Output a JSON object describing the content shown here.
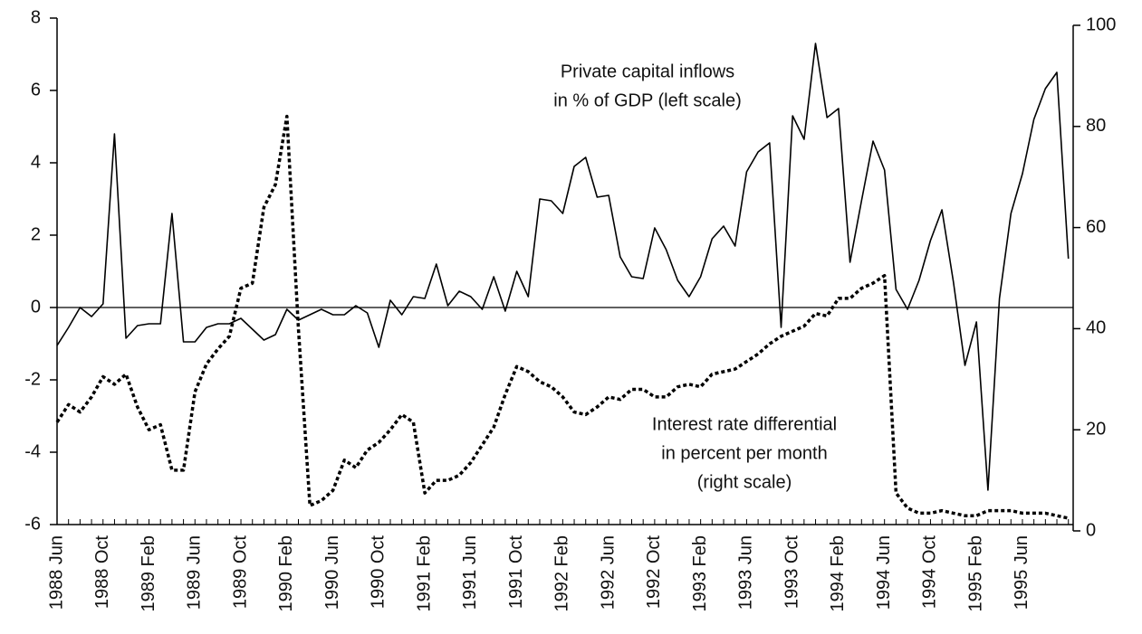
{
  "chart_data": {
    "type": "line",
    "annotations": [
      {
        "lines": [
          "Private capital inflows",
          "in % of GDP (left scale)"
        ]
      },
      {
        "lines": [
          "Interest rate differential",
          "in percent per month",
          "(right scale)"
        ]
      }
    ],
    "categories": [
      "1988 Jun",
      null,
      null,
      null,
      "1988 Oct",
      null,
      null,
      null,
      "1989 Feb",
      null,
      null,
      null,
      "1989 Jun",
      null,
      null,
      null,
      "1989 Oct",
      null,
      null,
      null,
      "1990 Feb",
      null,
      null,
      null,
      "1990 Jun",
      null,
      null,
      null,
      "1990 Oct",
      null,
      null,
      null,
      "1991 Feb",
      null,
      null,
      null,
      "1991 Jun",
      null,
      null,
      null,
      "1991 Oct",
      null,
      null,
      null,
      "1992 Feb",
      null,
      null,
      null,
      "1992 Jun",
      null,
      null,
      null,
      "1992 Oct",
      null,
      null,
      null,
      "1993 Feb",
      null,
      null,
      null,
      "1993 Jun",
      null,
      null,
      null,
      "1993 Oct",
      null,
      null,
      null,
      "1994 Feb",
      null,
      null,
      null,
      "1994 Jun",
      null,
      null,
      null,
      "1994 Oct",
      null,
      null,
      null,
      "1995 Feb",
      null,
      null,
      null,
      "1995 Jun",
      null,
      null,
      null,
      null
    ],
    "series": [
      {
        "color": "#000000",
        "dashed": false,
        "axis": "y",
        "values": [
          -1.05,
          -0.55,
          0,
          -0.25,
          0.1,
          4.8,
          -0.85,
          -0.5,
          -0.45,
          -0.45,
          2.6,
          -0.95,
          -0.95,
          -0.55,
          -0.45,
          -0.45,
          -0.3,
          -0.6,
          -0.9,
          -0.75,
          -0.05,
          -0.35,
          -0.2,
          -0.05,
          -0.2,
          -0.2,
          0.05,
          -0.15,
          -1.1,
          0.2,
          -0.2,
          0.3,
          0.25,
          1.2,
          0.05,
          0.45,
          0.3,
          -0.05,
          0.85,
          -0.1,
          1.0,
          0.3,
          3.0,
          2.95,
          2.6,
          3.9,
          4.15,
          3.05,
          3.1,
          1.4,
          0.85,
          0.8,
          2.2,
          1.6,
          0.75,
          0.3,
          0.85,
          1.9,
          2.25,
          1.7,
          3.75,
          4.3,
          4.55,
          -0.55,
          5.3,
          4.65,
          7.3,
          5.25,
          5.5,
          1.25,
          2.95,
          4.6,
          3.8,
          0.5,
          -0.05,
          0.75,
          1.85,
          2.7,
          0.7,
          -1.6,
          -0.4,
          -5.05,
          0.25,
          2.6,
          3.7,
          5.2,
          6.05,
          6.5,
          1.35
        ]
      },
      {
        "color": "#000000",
        "dashed": true,
        "axis": "y2",
        "values": [
          21.5,
          25,
          23.5,
          26.5,
          30.5,
          29,
          31,
          24.5,
          20,
          21,
          12,
          12,
          27.5,
          33,
          36,
          38.5,
          48,
          49,
          64,
          68.5,
          82,
          40,
          5,
          6,
          8,
          14,
          12.5,
          16,
          17.5,
          20,
          23,
          21.5,
          7.5,
          10,
          10,
          11,
          13.5,
          17,
          20.5,
          27,
          32.5,
          31.5,
          29.5,
          28.5,
          26.5,
          23.5,
          23,
          24.5,
          26.5,
          26,
          28,
          28,
          26.5,
          26.5,
          28.5,
          29,
          28.5,
          31,
          31.5,
          32,
          33.5,
          35,
          37,
          38.5,
          39.5,
          40.5,
          43,
          42.5,
          46,
          46,
          48,
          49,
          50.5,
          7.5,
          4.5,
          3.5,
          3.5,
          4,
          3.5,
          3,
          3,
          4,
          4,
          4,
          3.5,
          3.5,
          3.5,
          3,
          2.5
        ]
      }
    ],
    "ylim": [
      -6,
      8
    ],
    "yticks": [
      -6,
      -4,
      -2,
      0,
      2,
      4,
      6,
      8
    ],
    "y2lim": [
      0,
      100
    ],
    "y2ticks": [
      0,
      20,
      40,
      60,
      80,
      100
    ],
    "zero_line": true
  }
}
